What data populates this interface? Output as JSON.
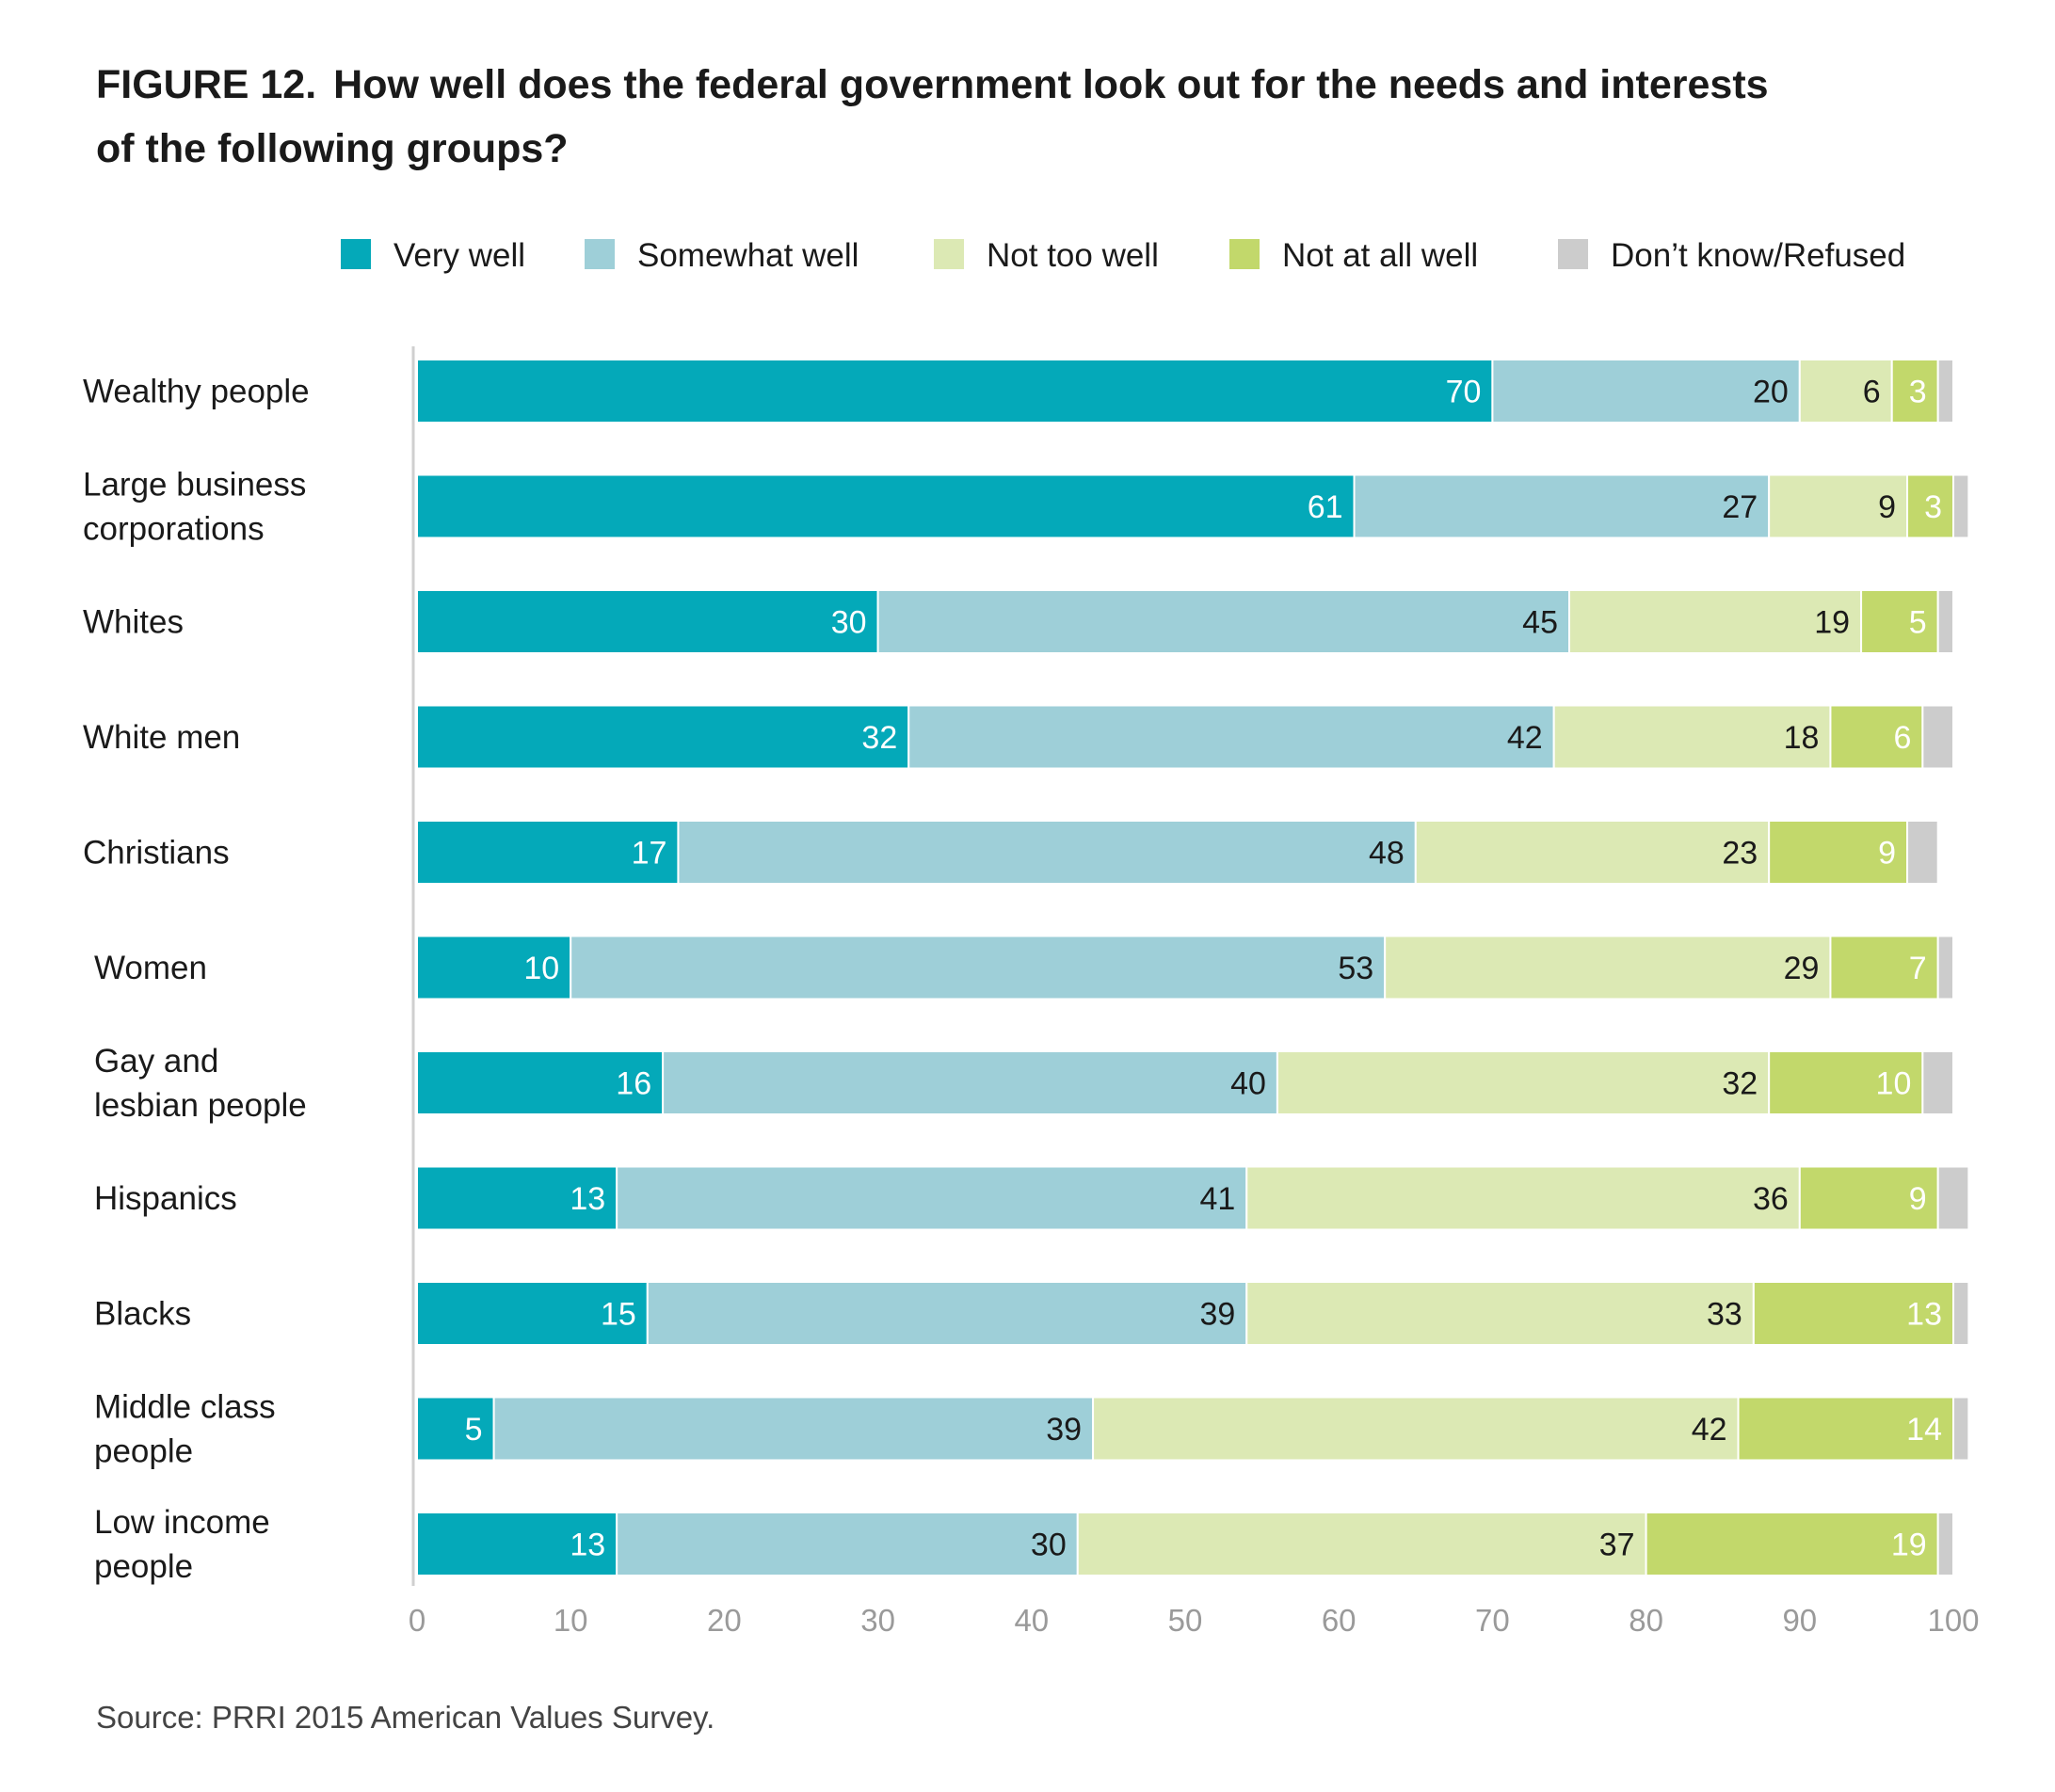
{
  "figure": {
    "number": "FIGURE 12.",
    "title_line1": "How well does the federal government look out for the needs and interests",
    "title_line2": "of the following groups?",
    "source": "Source: PRRI 2015 American Values Survey."
  },
  "colors": {
    "very_well": "#04a9b9",
    "somewhat_well": "#9ecfd8",
    "not_too_well": "#dce9b4",
    "not_at_all_well": "#c2d86b",
    "dont_know": "#cccccc",
    "axis": "#cfcfcf",
    "tick_label": "#9a9a9a"
  },
  "chart_data": {
    "type": "bar",
    "orientation": "horizontal",
    "stacked": true,
    "title": "How well does the federal government look out for the needs and interests of the following groups?",
    "xlim": [
      0,
      100
    ],
    "x_ticks": [
      0,
      10,
      20,
      30,
      40,
      50,
      60,
      70,
      80,
      90,
      100
    ],
    "legend_position": "top",
    "categories": [
      [
        "Wealthy people"
      ],
      [
        "Large business",
        "corporations"
      ],
      [
        "Whites"
      ],
      [
        "White men"
      ],
      [
        "Christians"
      ],
      [
        "Women"
      ],
      [
        "Gay and",
        "lesbian people"
      ],
      [
        "Hispanics"
      ],
      [
        "Blacks"
      ],
      [
        "Middle class",
        "people"
      ],
      [
        "Low income",
        "people"
      ]
    ],
    "series": [
      {
        "name": "Very well",
        "color_key": "very_well",
        "label_color": "#ffffff",
        "values": [
          70,
          61,
          30,
          32,
          17,
          10,
          16,
          13,
          15,
          5,
          13
        ],
        "labels": [
          "70",
          "61",
          "30",
          "32",
          "17",
          "10",
          "16",
          "13",
          "15",
          "5",
          "13"
        ]
      },
      {
        "name": "Somewhat well",
        "color_key": "somewhat_well",
        "label_color": "#1a1a1a",
        "values": [
          20,
          27,
          45,
          42,
          48,
          53,
          40,
          41,
          39,
          39,
          30
        ],
        "labels": [
          "20",
          "27",
          "45",
          "42",
          "48",
          "53",
          "40",
          "41",
          "39",
          "39",
          "30"
        ]
      },
      {
        "name": "Not too well",
        "color_key": "not_too_well",
        "label_color": "#1a1a1a",
        "values": [
          6,
          9,
          19,
          18,
          23,
          29,
          32,
          36,
          33,
          42,
          37
        ],
        "labels": [
          "6",
          "9",
          "19",
          "18",
          "23",
          "29",
          "32",
          "36",
          "33",
          "42",
          "37"
        ]
      },
      {
        "name": "Not at all well",
        "color_key": "not_at_all_well",
        "label_color": "#ffffff",
        "values": [
          3,
          3,
          5,
          6,
          9,
          7,
          10,
          9,
          13,
          14,
          19
        ],
        "labels": [
          "3",
          "3",
          "5",
          "6",
          "9",
          "7",
          "10",
          "9",
          "13",
          "14",
          "19"
        ]
      },
      {
        "name": "Don’t know/Refused",
        "color_key": "dont_know",
        "label_color": "#1a1a1a",
        "values": [
          1,
          1,
          1,
          2,
          2,
          1,
          2,
          2,
          1,
          1,
          1
        ],
        "labels": [
          "",
          "",
          "",
          "",
          "",
          "",
          "",
          "",
          "",
          "",
          ""
        ]
      }
    ]
  }
}
